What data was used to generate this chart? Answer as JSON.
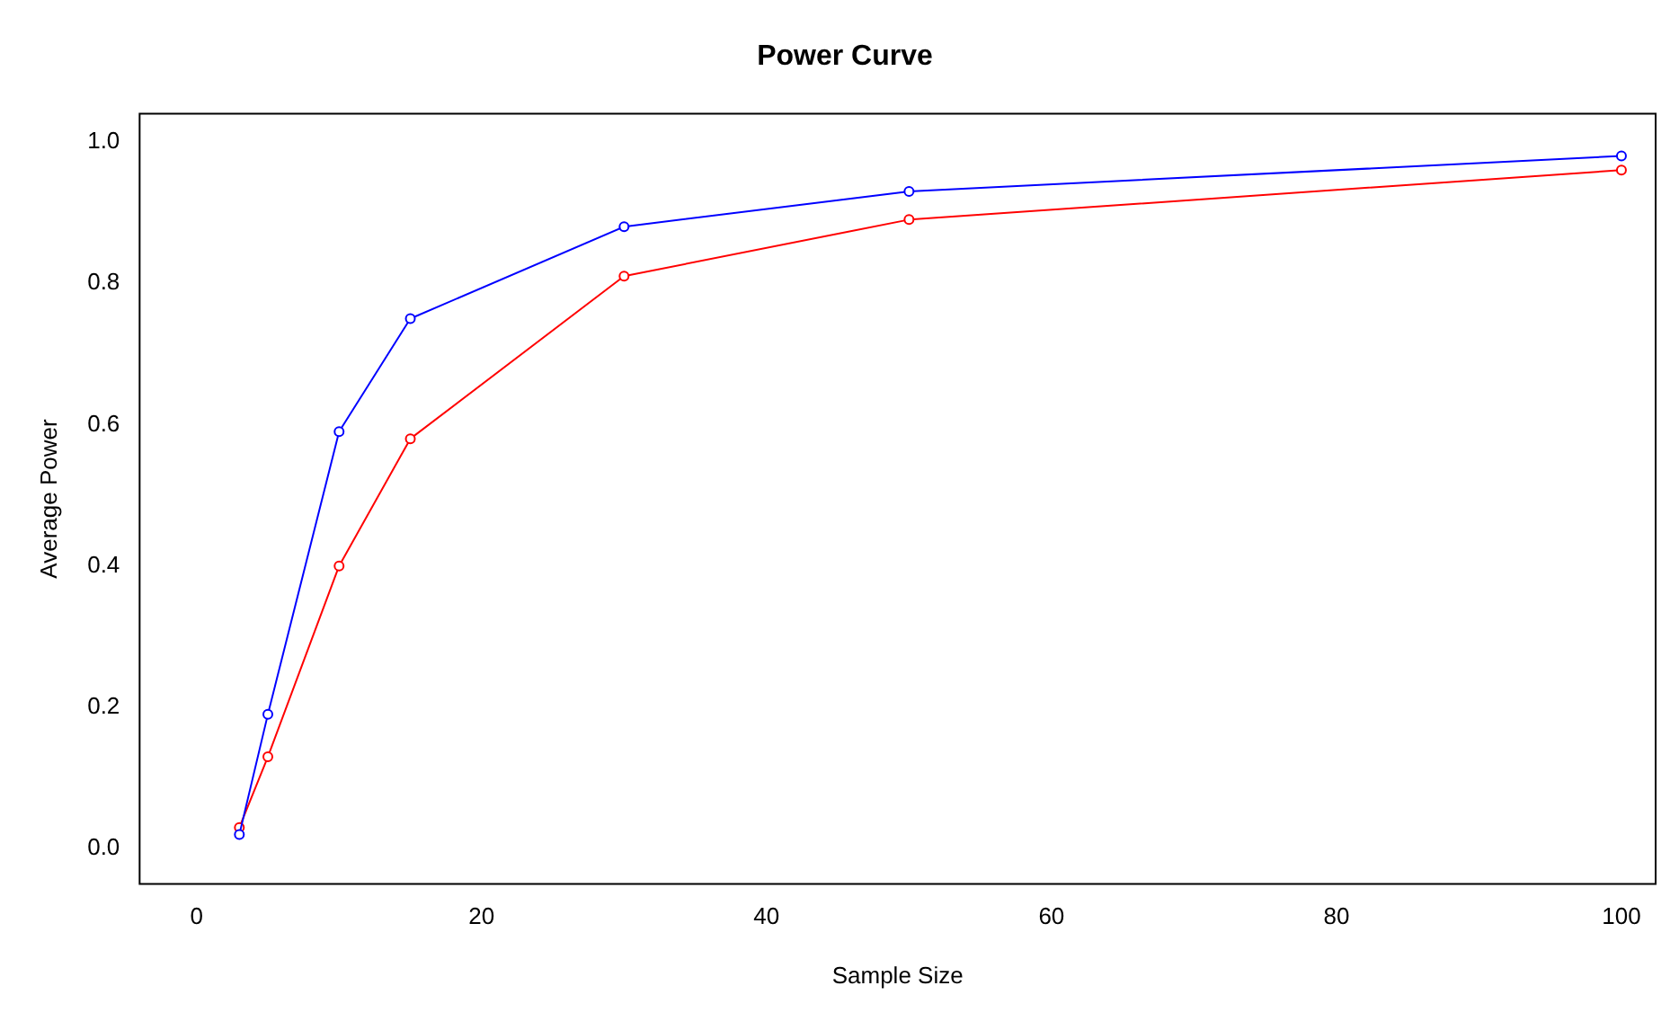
{
  "chart_data": {
    "type": "line",
    "title": "Power Curve",
    "xlabel": "Sample Size",
    "ylabel": "Average Power",
    "x": [
      3,
      5,
      10,
      15,
      30,
      50,
      100
    ],
    "series": [
      {
        "color": "#0000ff",
        "values": [
          0.02,
          0.19,
          0.59,
          0.75,
          0.88,
          0.93,
          0.98
        ]
      },
      {
        "color": "#ff0000",
        "values": [
          0.03,
          0.13,
          0.4,
          0.58,
          0.81,
          0.89,
          0.96
        ]
      }
    ],
    "xlim": [
      -4,
      102.4
    ],
    "xticks": [
      0,
      20,
      40,
      60,
      80,
      100
    ],
    "ylim": [
      -0.05,
      1.04
    ],
    "yticks": [
      {
        "value": 0,
        "label": "0.0"
      },
      0.2,
      0.4,
      0.6,
      0.8,
      {
        "value": 1,
        "label": "1.0"
      }
    ],
    "grid": false,
    "legend": false,
    "marker": "circle",
    "line_style": "solid"
  }
}
